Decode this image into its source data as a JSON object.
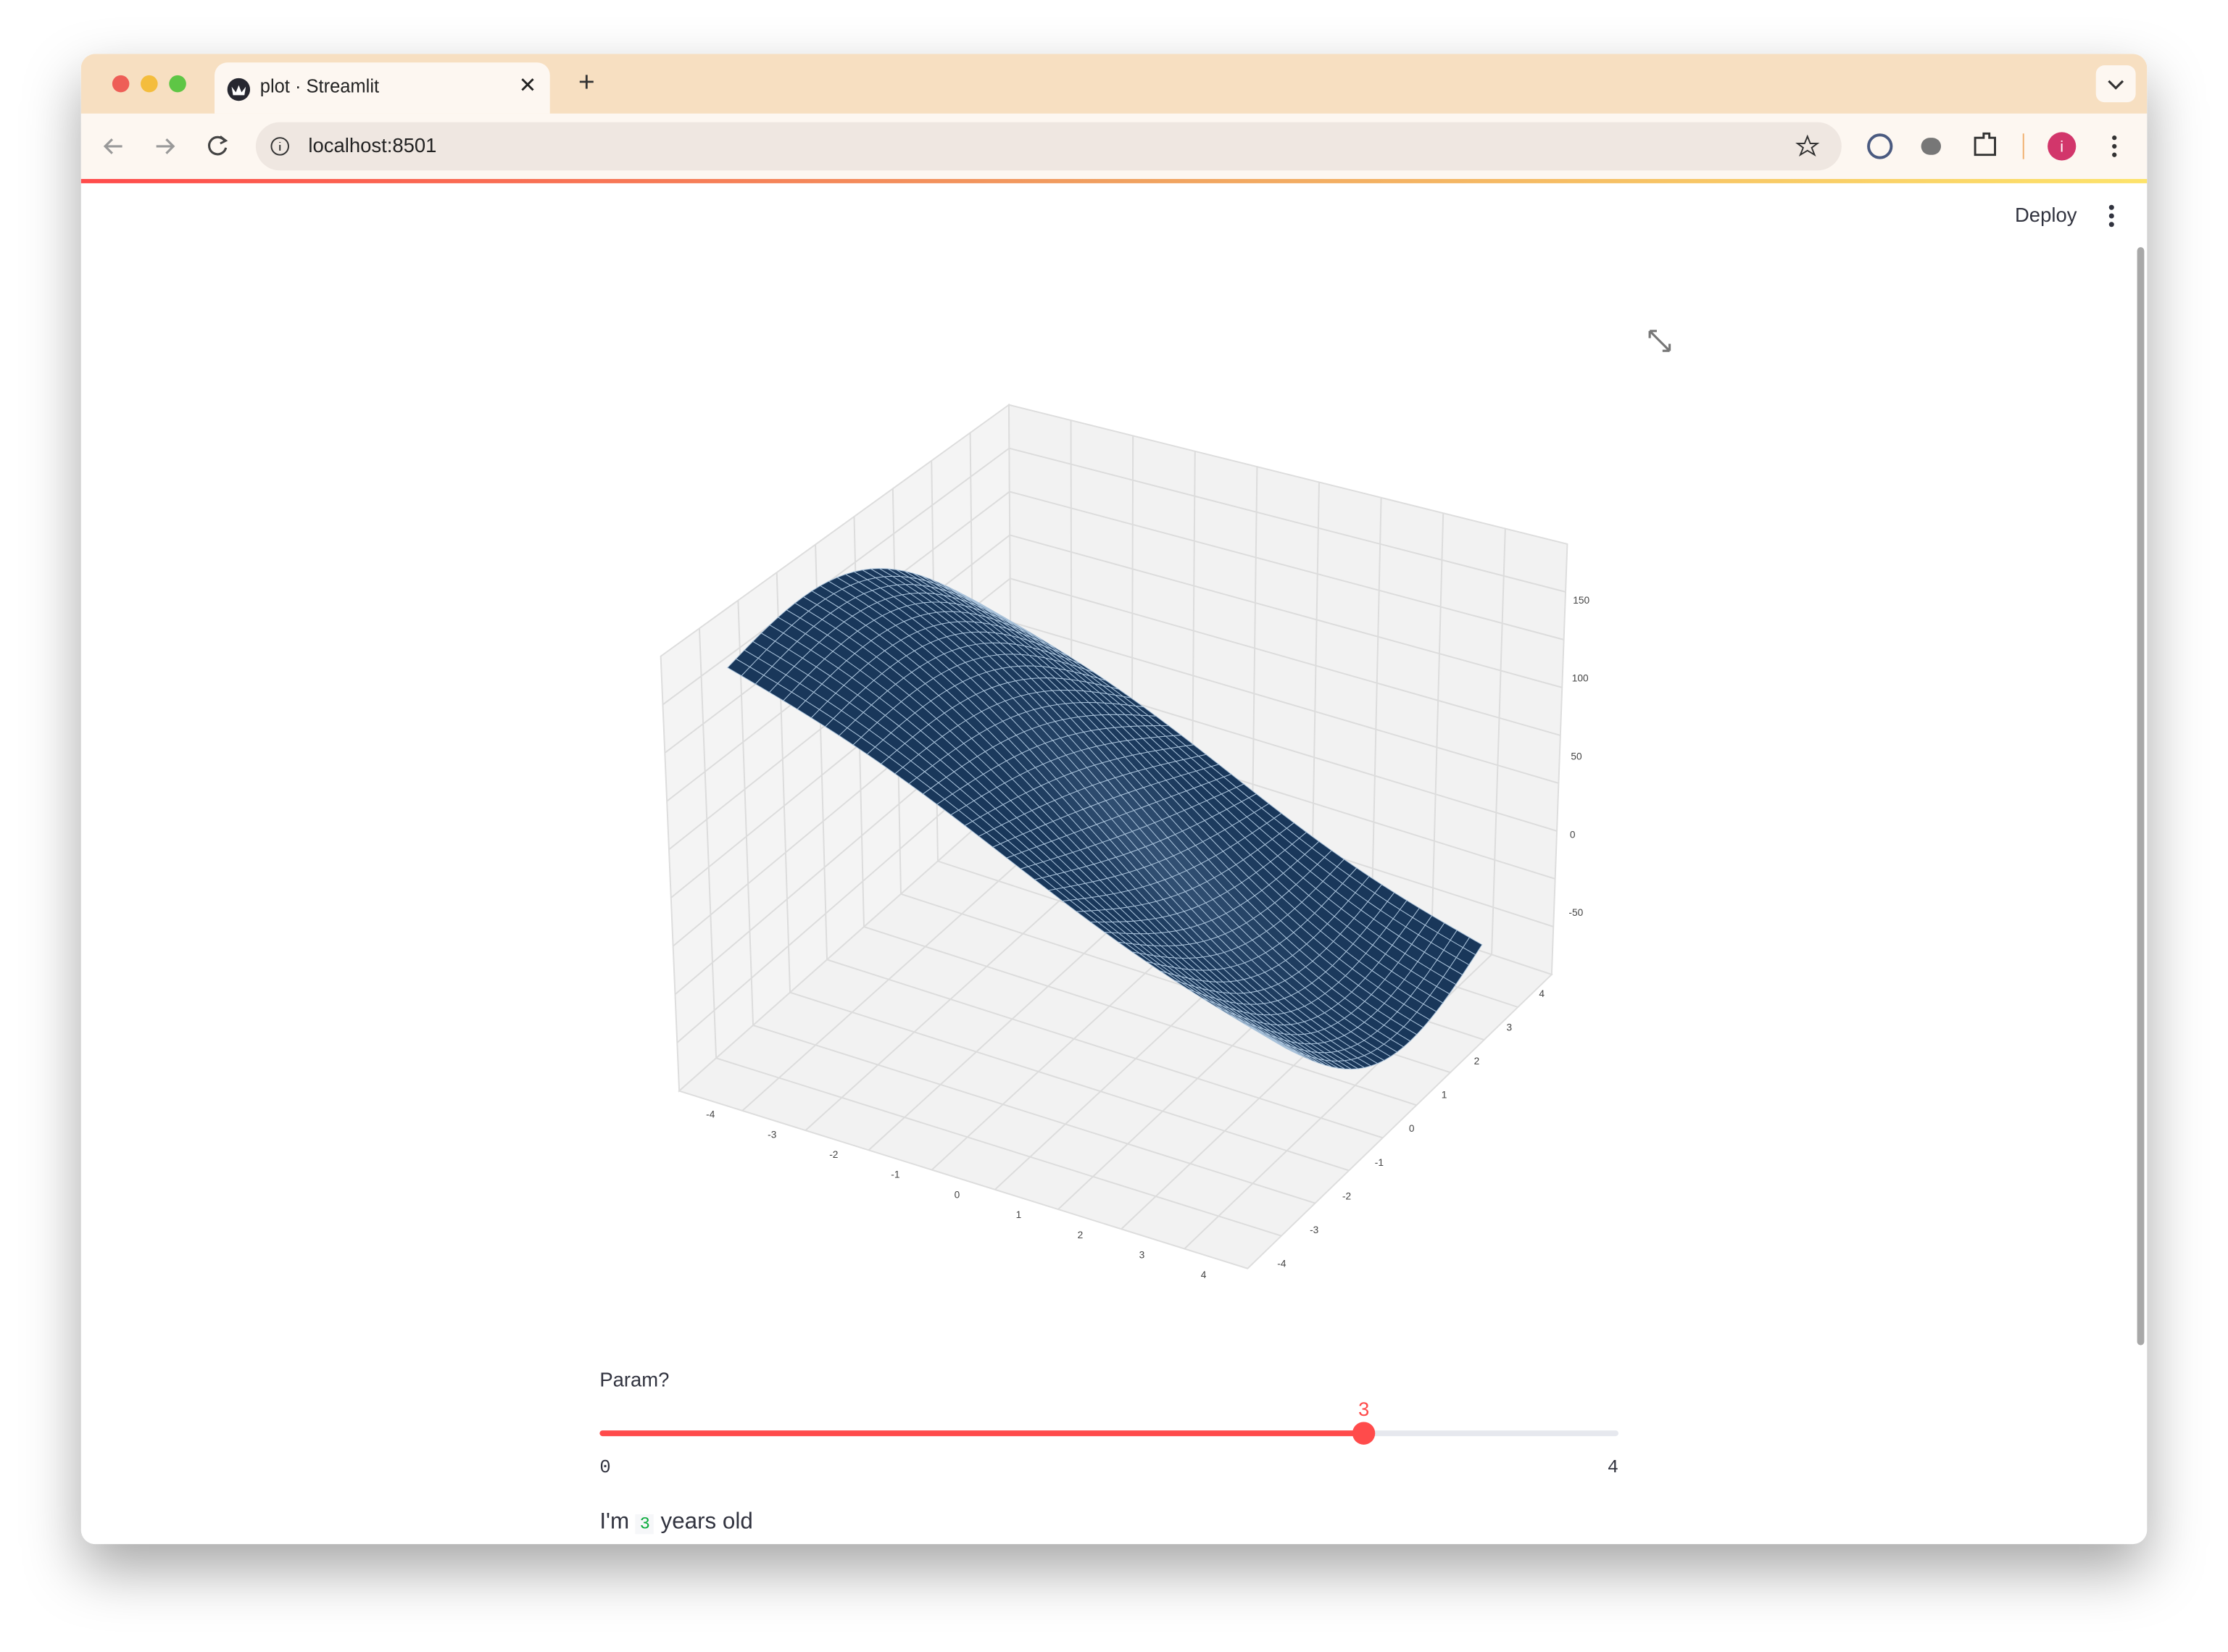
{
  "browser": {
    "tab_title": "plot · Streamlit",
    "url": "localhost:8501",
    "profile_initial": "i"
  },
  "app": {
    "toolbar": {
      "deploy": "Deploy"
    },
    "plot": {
      "x_ticks": [
        -4,
        -3,
        -2,
        -1,
        0,
        1,
        2,
        3,
        4
      ],
      "y_ticks": [
        -4,
        -3,
        -2,
        -1,
        0,
        1,
        2,
        3,
        4
      ],
      "z_ticks": [
        -50,
        0,
        50,
        100,
        150
      ]
    },
    "slider": {
      "label": "Param?",
      "value": 3,
      "min": 0,
      "max": 4
    },
    "output": {
      "prefix": "I'm",
      "value": "3",
      "suffix": "years old"
    }
  }
}
